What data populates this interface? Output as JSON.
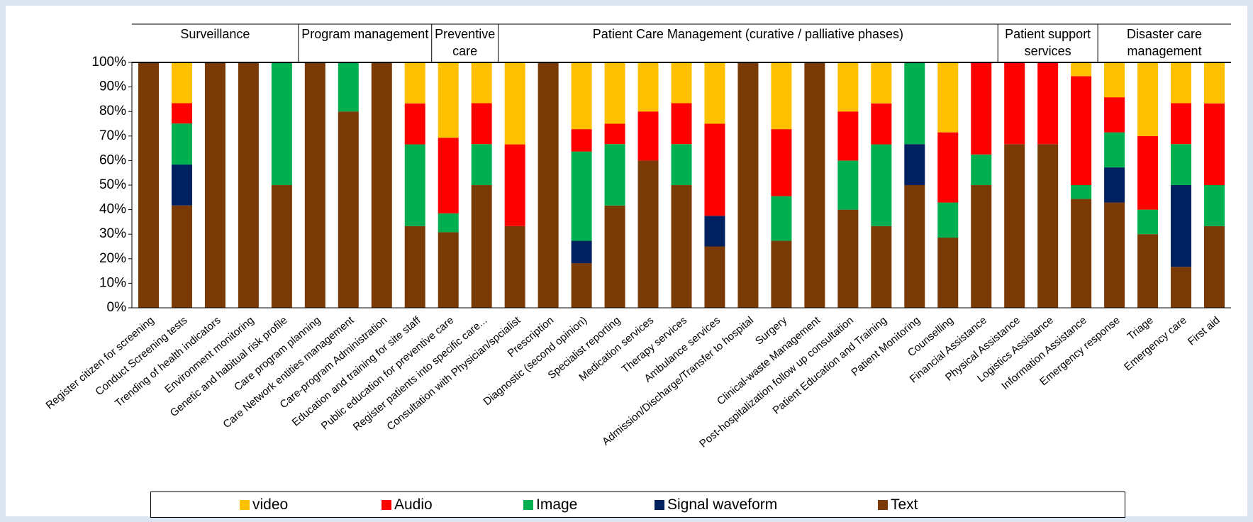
{
  "chart_data": {
    "type": "stacked_bar",
    "groups": [
      "Surveillance",
      "Program management",
      "Preventive care",
      "Patient Care Management (curative / palliative phases)",
      "Patient support services",
      "Disaster care management"
    ],
    "categories": [
      "Register citizen for screening",
      "Conduct Screening tests",
      "Trending of health indicators",
      "Environment monitoring",
      "Genetic and habitual risk profile",
      "Care program planning",
      "Care Network entities management",
      "Care-program Administration",
      "Education and training for site staff",
      "Public education for preventive care",
      "Register patients into specific care...",
      "Consultation with Physician/spcialist",
      "Prescription",
      "Diagnostic (second opinion)",
      "Specialist reporting",
      "Medication services",
      "Therapy  services",
      "Ambulance services",
      "Admission/Discharge/Transfer to hospital",
      "Surgery",
      "Clinical-waste Management",
      "Post-hospitalization follow up consultation",
      "Patient Education and Training",
      "Patient Monitoring",
      "Counselling",
      "Financial Assistance",
      "Physical Assistance",
      "Logistics Assistance",
      "Information Assistance",
      "Emergency response",
      "Triage",
      "Emergency care",
      "First aid"
    ],
    "series": [
      {
        "name": "video",
        "color": "#ffc000",
        "values": [
          0,
          16.7,
          0,
          0,
          0,
          0,
          0,
          0,
          16.7,
          30.8,
          16.7,
          33.3,
          0,
          27.3,
          25,
          20,
          16.7,
          25,
          0,
          27.3,
          0,
          20,
          16.7,
          0,
          28.6,
          0,
          0,
          0,
          5.6,
          14.3,
          30,
          16.7,
          16.7
        ]
      },
      {
        "name": "Audio",
        "color": "#ff0000",
        "values": [
          0,
          8.3,
          0,
          0,
          0,
          0,
          0,
          0,
          16.7,
          30.8,
          16.7,
          33.3,
          0,
          9.1,
          8.3,
          20,
          16.7,
          37.5,
          0,
          27.3,
          0,
          20,
          16.7,
          0,
          28.6,
          37.5,
          33.3,
          33.3,
          44.4,
          14.3,
          30,
          16.7,
          33.3
        ]
      },
      {
        "name": "Image",
        "color": "#00b050",
        "values": [
          0,
          16.7,
          0,
          0,
          50,
          0,
          20,
          0,
          33.3,
          7.7,
          16.7,
          0,
          0,
          36.4,
          25,
          0,
          16.7,
          0,
          0,
          18.2,
          0,
          20,
          33.3,
          33.3,
          14.3,
          12.5,
          0,
          0,
          5.6,
          14.3,
          10,
          16.7,
          16.7
        ]
      },
      {
        "name": "Signal waveform",
        "color": "#002060",
        "values": [
          0,
          16.7,
          0,
          0,
          0,
          0,
          0,
          0,
          0,
          0,
          0,
          0,
          0,
          9.1,
          0,
          0,
          0,
          12.5,
          0,
          0,
          0,
          0,
          0,
          16.7,
          0,
          0,
          0,
          0,
          0,
          14.3,
          0,
          33.3,
          0
        ]
      },
      {
        "name": "Text",
        "color": "#7a3a06",
        "values": [
          100,
          41.7,
          100,
          100,
          50,
          100,
          80,
          100,
          33.3,
          30.8,
          50,
          33.3,
          100,
          18.2,
          41.7,
          60,
          50,
          25,
          100,
          27.3,
          100,
          40,
          33.3,
          50,
          28.6,
          50,
          66.7,
          66.7,
          44.4,
          42.9,
          30,
          16.7,
          33.3
        ]
      }
    ],
    "ylim": [
      0,
      100
    ],
    "yticks": [
      {
        "value": 0,
        "label": "0%"
      },
      {
        "value": 10,
        "label": "10%"
      },
      {
        "value": 20,
        "label": "20%"
      },
      {
        "value": 30,
        "label": "30%"
      },
      {
        "value": 40,
        "label": "40%"
      },
      {
        "value": 50,
        "label": "50%"
      },
      {
        "value": 60,
        "label": "60%"
      },
      {
        "value": 70,
        "label": "70%"
      },
      {
        "value": 80,
        "label": "80%"
      },
      {
        "value": 90,
        "label": "90%"
      },
      {
        "value": 100,
        "label": "100%"
      }
    ]
  }
}
